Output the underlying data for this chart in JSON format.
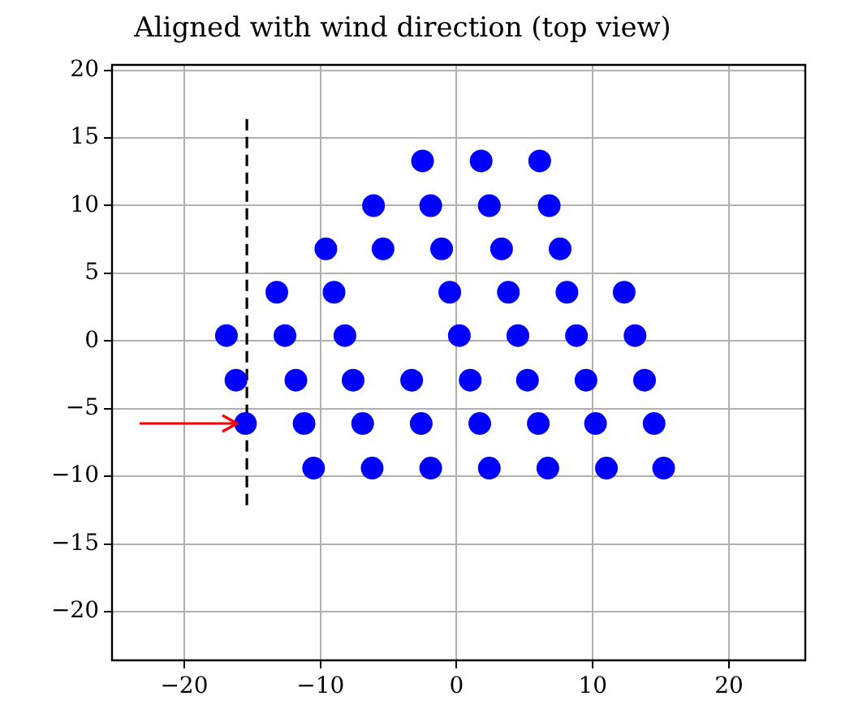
{
  "chart_data": {
    "type": "scatter",
    "title": "Aligned with wind direction (top view)",
    "xlim": [
      -25.3,
      25.6
    ],
    "xticks": [
      -20,
      -10,
      0,
      10,
      20
    ],
    "ylim": [
      -23.6,
      20.4
    ],
    "yticks": [
      -20,
      -15,
      -10,
      -5,
      0,
      5,
      10,
      15,
      20
    ],
    "grid": true,
    "marker": "circle",
    "series": [
      {
        "color": "#0000ff",
        "x": [
          -2.5,
          1.8,
          6.1,
          -6.1,
          -1.9,
          2.4,
          6.8,
          -9.6,
          -5.4,
          -1.1,
          3.3,
          7.6,
          -13.2,
          -9.0,
          -0.5,
          3.8,
          8.1,
          12.3,
          -16.9,
          -12.6,
          -8.2,
          0.2,
          4.5,
          8.8,
          13.1,
          -16.2,
          -11.8,
          -7.6,
          -3.3,
          1.0,
          5.2,
          9.5,
          13.8,
          -15.5,
          -11.2,
          -6.9,
          -2.6,
          1.7,
          6.0,
          10.2,
          14.5,
          -10.5,
          -6.2,
          -1.9,
          2.4,
          6.7,
          11.0,
          15.2
        ],
        "values": [
          13.3,
          13.3,
          13.3,
          10,
          10,
          10,
          10,
          6.8,
          6.8,
          6.8,
          6.8,
          6.8,
          3.6,
          3.6,
          3.6,
          3.6,
          3.6,
          3.6,
          0.4,
          0.4,
          0.4,
          0.4,
          0.4,
          0.4,
          0.4,
          -2.9,
          -2.9,
          -2.9,
          -2.9,
          -2.9,
          -2.9,
          -2.9,
          -2.9,
          -6.1,
          -6.1,
          -6.1,
          -6.1,
          -6.1,
          -6.1,
          -6.1,
          -6.1,
          -9.4,
          -9.4,
          -9.4,
          -9.4,
          -9.4,
          -9.4,
          -9.4
        ]
      },
      {
        "type": "line",
        "color": "#000000",
        "line_style": "dashed",
        "marker": "none",
        "x": [
          -15.4,
          -15.4
        ],
        "values": [
          16.4,
          -12.4
        ]
      }
    ]
  }
}
